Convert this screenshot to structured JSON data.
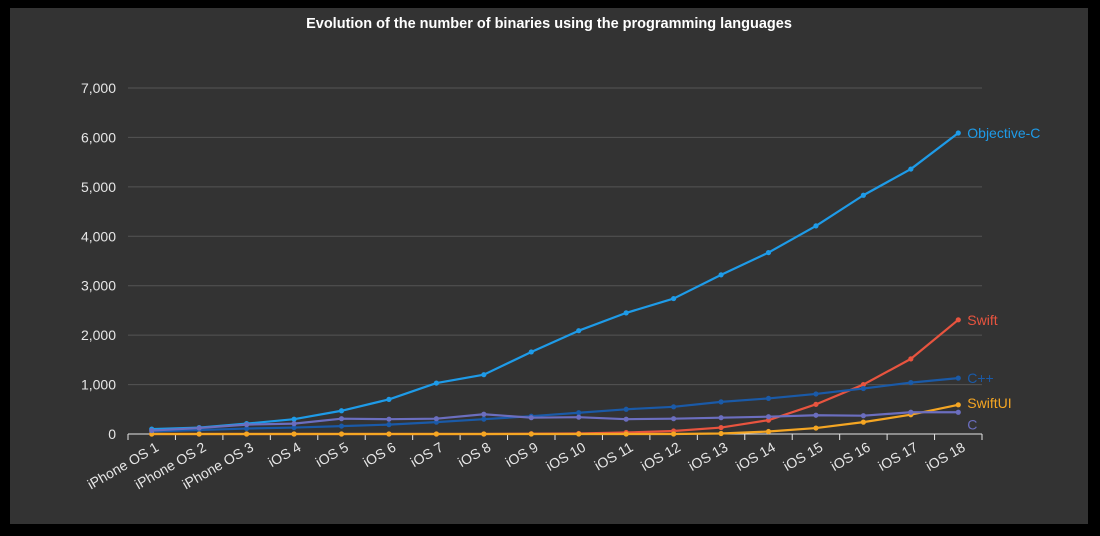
{
  "chart_data": {
    "type": "line",
    "title": "Evolution of the number of binaries using the programming languages",
    "xlabel": "",
    "ylabel": "",
    "categories": [
      "iPhone OS 1",
      "iPhone OS 2",
      "iPhone OS 3",
      "iOS 4",
      "iOS 5",
      "iOS 6",
      "iOS 7",
      "iOS 8",
      "iOS 9",
      "iOS 10",
      "iOS 11",
      "iOS 12",
      "iOS 13",
      "iOS 14",
      "iOS 15",
      "iOS 16",
      "iOS 17",
      "iOS 18"
    ],
    "ylim": [
      0,
      7000
    ],
    "yticks": [
      0,
      1000,
      2000,
      3000,
      4000,
      5000,
      6000,
      7000
    ],
    "ytick_labels": [
      "0",
      "1,000",
      "2,000",
      "3,000",
      "4,000",
      "5,000",
      "6,000",
      "7,000"
    ],
    "grid": true,
    "legend": "inline labels at line ends",
    "series": [
      {
        "name": "Objective-C",
        "color": "#1e9be8",
        "values": [
          100,
          130,
          210,
          300,
          470,
          700,
          1030,
          1200,
          1660,
          2090,
          2450,
          2740,
          3220,
          3670,
          4210,
          4830,
          5360,
          6090
        ]
      },
      {
        "name": "Swift",
        "color": "#e8543f",
        "values": [
          0,
          0,
          0,
          0,
          0,
          0,
          0,
          0,
          5,
          10,
          30,
          60,
          130,
          280,
          600,
          1000,
          1520,
          2310
        ]
      },
      {
        "name": "C++",
        "color": "#1a5aa8",
        "values": [
          50,
          80,
          110,
          130,
          160,
          190,
          240,
          300,
          360,
          430,
          500,
          550,
          650,
          720,
          810,
          920,
          1040,
          1130
        ]
      },
      {
        "name": "SwiftUI",
        "color": "#f5a623",
        "values": [
          0,
          0,
          0,
          0,
          0,
          0,
          0,
          0,
          0,
          0,
          0,
          0,
          10,
          50,
          120,
          240,
          390,
          590
        ]
      },
      {
        "name": "C",
        "color": "#6b6ebf",
        "values": [
          70,
          120,
          190,
          210,
          310,
          300,
          310,
          400,
          330,
          340,
          300,
          310,
          330,
          350,
          380,
          370,
          440,
          440
        ]
      }
    ]
  }
}
